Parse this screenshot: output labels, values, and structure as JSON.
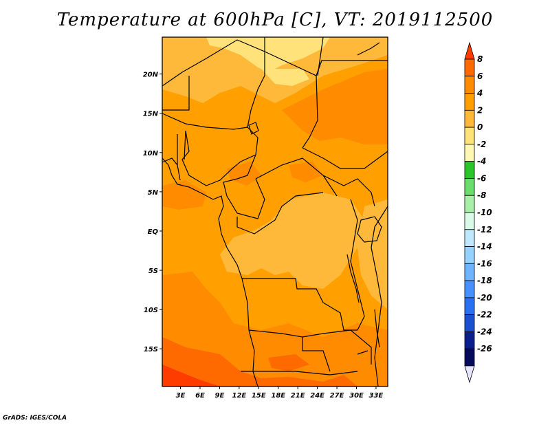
{
  "title": "Temperature at 600hPa [C], VT: 2019112500",
  "credit": "GrADS: IGES/COLA",
  "map": {
    "lat_ticks": [
      "20N",
      "15N",
      "10N",
      "5N",
      "EQ",
      "5S",
      "10S",
      "15S"
    ],
    "lon_ticks": [
      "3E",
      "6E",
      "9E",
      "12E",
      "15E",
      "18E",
      "21E",
      "24E",
      "27E",
      "30E",
      "33E"
    ],
    "lat_values": [
      20,
      15,
      10,
      5,
      0,
      -5,
      -10,
      -15
    ],
    "lon_values": [
      3,
      6,
      9,
      12,
      15,
      18,
      21,
      24,
      27,
      30,
      33
    ],
    "lat_range": [
      -19.8,
      24.7
    ],
    "lon_range": [
      0.2,
      34.8
    ]
  },
  "colorbar": {
    "labels": [
      "8",
      "6",
      "4",
      "2",
      "0",
      "-2",
      "-4",
      "-6",
      "-8",
      "-10",
      "-12",
      "-14",
      "-16",
      "-18",
      "-20",
      "-22",
      "-24",
      "-26"
    ],
    "colors": [
      "#ff3c00",
      "#ff6a00",
      "#ff8c00",
      "#ffa000",
      "#ffb93a",
      "#ffe27a",
      "#fff8b4",
      "#2bc42b",
      "#6cdc6c",
      "#a8f0a8",
      "#d8fae6",
      "#bfe8ff",
      "#96d2ff",
      "#6eb4ff",
      "#4690ff",
      "#2a70f0",
      "#1a50d0",
      "#0a1e8c",
      "#050a5a",
      "#e6e6ff"
    ]
  },
  "colors": {
    "field_base": "#ffa000",
    "field_warm": "#ff8c00",
    "field_warmer": "#ff6a00",
    "field_cool": "#ffb93a",
    "field_cooler": "#ffe27a"
  }
}
